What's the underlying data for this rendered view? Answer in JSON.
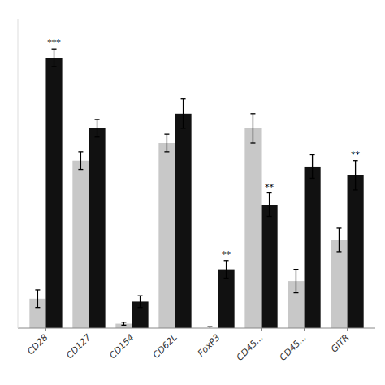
{
  "chart_data": {
    "type": "bar",
    "categories": [
      "CD28",
      "CD127",
      "CD154",
      "CD62L",
      "FoxP3",
      "CD45...",
      "CD45...",
      "GITR"
    ],
    "series": [
      {
        "color": "#c8c8c8",
        "values": [
          10,
          57,
          1.5,
          63,
          0,
          68,
          16,
          30
        ],
        "errors": [
          3,
          3,
          0.5,
          3,
          0.5,
          5,
          4,
          4
        ]
      },
      {
        "color": "#111111",
        "values": [
          92,
          68,
          9,
          73,
          20,
          42,
          55,
          52
        ],
        "errors": [
          3,
          3,
          2,
          5,
          3,
          4,
          4,
          5
        ]
      }
    ],
    "annotations": [
      {
        "text": "***",
        "series": 1,
        "index": 0
      },
      {
        "text": "**",
        "series": 1,
        "index": 4
      },
      {
        "text": "**",
        "series": 1,
        "index": 5
      },
      {
        "text": "**",
        "series": 1,
        "index": 7
      }
    ],
    "ylim": [
      0,
      105
    ],
    "tick_labels": "x",
    "grid": false
  }
}
